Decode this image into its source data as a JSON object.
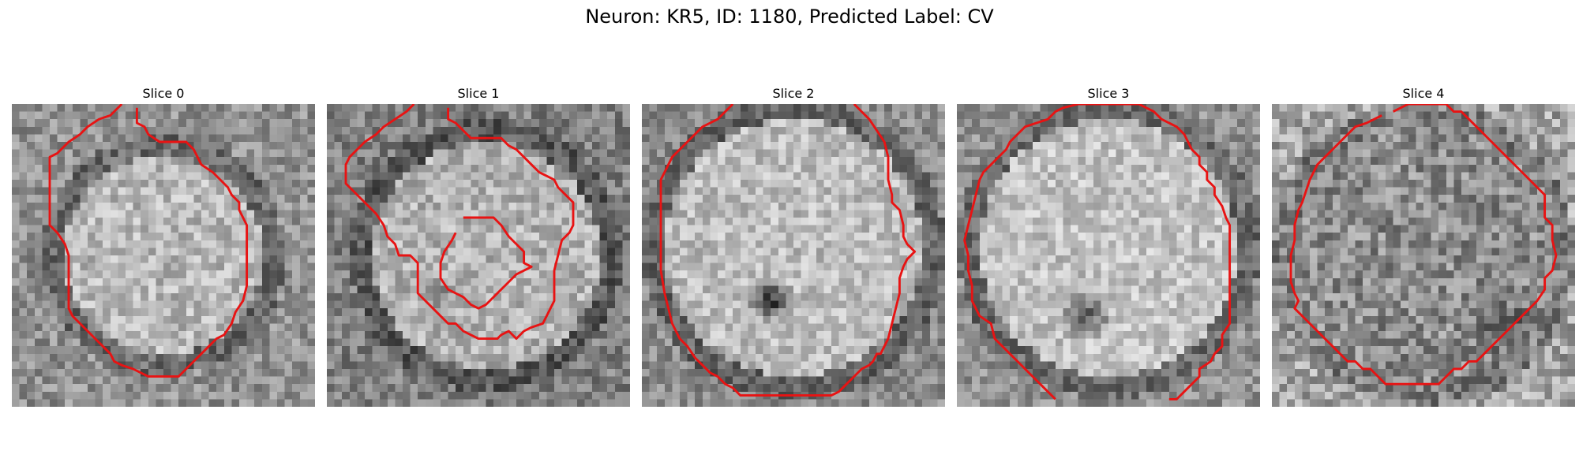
{
  "figure": {
    "title": "Neuron: KR5, ID: 1180, Predicted Label: CV",
    "grid_size": 40,
    "colormap": "gray",
    "contour_color": "#e81313"
  },
  "panels": [
    {
      "title": "Slice 0",
      "texture": {
        "seed": 11,
        "base": 0.72,
        "center": [
          20,
          20
        ],
        "radius": 13,
        "outside": 0.42,
        "noise": 0.32,
        "dark_spots": []
      },
      "contour": [
        [
          14.5,
          0
        ],
        [
          13,
          1.5
        ],
        [
          11.5,
          2
        ],
        [
          10,
          3
        ],
        [
          9,
          4
        ],
        [
          7.5,
          5
        ],
        [
          6,
          6.5
        ],
        [
          5,
          7
        ],
        [
          5,
          10
        ],
        [
          5,
          13
        ],
        [
          5,
          16
        ],
        [
          6,
          17
        ],
        [
          7,
          18.5
        ],
        [
          7.5,
          20
        ],
        [
          7.5,
          24
        ],
        [
          7.5,
          27
        ],
        [
          8,
          28
        ],
        [
          9,
          29
        ],
        [
          10,
          30
        ],
        [
          11,
          31
        ],
        [
          12,
          32
        ],
        [
          13,
          33
        ],
        [
          13.5,
          34
        ],
        [
          14.5,
          34.5
        ],
        [
          16,
          35
        ],
        [
          18,
          36
        ],
        [
          20,
          36
        ],
        [
          22,
          36
        ],
        [
          23,
          35
        ],
        [
          24,
          34
        ],
        [
          25,
          33
        ],
        [
          26,
          32
        ],
        [
          27,
          31
        ],
        [
          28,
          30.5
        ],
        [
          29,
          29
        ],
        [
          29.5,
          27.5
        ],
        [
          30.5,
          26
        ],
        [
          31,
          24
        ],
        [
          31,
          22
        ],
        [
          31,
          18
        ],
        [
          31,
          16
        ],
        [
          30,
          14
        ],
        [
          30,
          13
        ],
        [
          29,
          12
        ],
        [
          28.5,
          11
        ],
        [
          27.5,
          10
        ],
        [
          26.5,
          9
        ],
        [
          25,
          8
        ],
        [
          24,
          6
        ],
        [
          23,
          5
        ],
        [
          21,
          5
        ],
        [
          19.5,
          5
        ],
        [
          18,
          4
        ],
        [
          17.5,
          3
        ],
        [
          16.5,
          2.5
        ],
        [
          16.5,
          0.5
        ]
      ]
    },
    {
      "title": "Slice 1",
      "texture": {
        "seed": 23,
        "base": 0.7,
        "center": [
          21,
          20
        ],
        "radius": 15,
        "outside": 0.35,
        "noise": 0.32,
        "dark_spots": [
          [
            14,
            25,
            3,
            0.25
          ]
        ]
      },
      "contour": [
        [
          11.5,
          0
        ],
        [
          10.5,
          1
        ],
        [
          9,
          2
        ],
        [
          7.5,
          3
        ],
        [
          6.5,
          4
        ],
        [
          5,
          5
        ],
        [
          4,
          6
        ],
        [
          3,
          7
        ],
        [
          2.5,
          8
        ],
        [
          2.5,
          10.5
        ],
        [
          3.5,
          11.5
        ],
        [
          4.5,
          12.5
        ],
        [
          5.5,
          13.5
        ],
        [
          6.5,
          14.5
        ],
        [
          7.5,
          16
        ],
        [
          8,
          17.5
        ],
        [
          9,
          18.5
        ],
        [
          9.5,
          20
        ],
        [
          11,
          20
        ],
        [
          12,
          21
        ],
        [
          12,
          23
        ],
        [
          12,
          25
        ],
        [
          13,
          26
        ],
        [
          14,
          27
        ],
        [
          15,
          28
        ],
        [
          16,
          29
        ],
        [
          17,
          29
        ],
        [
          18,
          30
        ],
        [
          19,
          30.5
        ],
        [
          20,
          31
        ],
        [
          22.5,
          31
        ],
        [
          23,
          30.5
        ],
        [
          24,
          30
        ],
        [
          25,
          31
        ],
        [
          26,
          30
        ],
        [
          27,
          29.5
        ],
        [
          28.5,
          29
        ],
        [
          29,
          28
        ],
        [
          30,
          26
        ],
        [
          30,
          24
        ],
        [
          30,
          22
        ],
        [
          30.5,
          20
        ],
        [
          31,
          18
        ],
        [
          32,
          17
        ],
        [
          32.5,
          16
        ],
        [
          32.5,
          13
        ],
        [
          31.5,
          12
        ],
        [
          30.5,
          11
        ],
        [
          30,
          10
        ],
        [
          29,
          9.5
        ],
        [
          28,
          9
        ],
        [
          27,
          8
        ],
        [
          26,
          7
        ],
        [
          25,
          6
        ],
        [
          24,
          5.5
        ],
        [
          23,
          4.5
        ],
        [
          21,
          4.5
        ],
        [
          19,
          4.5
        ],
        [
          18,
          3.5
        ],
        [
          17,
          2.5
        ],
        [
          16,
          2
        ],
        [
          16,
          0.5
        ]
      ],
      "inner_contour": [
        [
          18,
          15
        ],
        [
          20,
          15
        ],
        [
          22,
          15
        ],
        [
          23,
          16
        ],
        [
          24,
          17.5
        ],
        [
          25,
          18.5
        ],
        [
          26,
          19.5
        ],
        [
          26,
          21
        ],
        [
          27,
          21.5
        ],
        [
          26,
          22
        ],
        [
          25,
          22.5
        ],
        [
          24,
          23.5
        ],
        [
          23,
          24.5
        ],
        [
          22,
          25.5
        ],
        [
          21,
          26.5
        ],
        [
          20,
          27
        ],
        [
          19,
          26.5
        ],
        [
          18,
          25.5
        ],
        [
          17,
          25
        ],
        [
          16,
          24.5
        ],
        [
          15,
          23
        ],
        [
          15,
          21
        ],
        [
          15.5,
          19.5
        ],
        [
          16.5,
          18
        ],
        [
          17,
          17
        ]
      ]
    },
    {
      "title": "Slice 2",
      "texture": {
        "seed": 37,
        "base": 0.74,
        "center": [
          20,
          19
        ],
        "radius": 17,
        "outside": 0.4,
        "noise": 0.3,
        "dark_spots": [
          [
            17,
            26,
            3.2,
            0.6
          ]
        ]
      },
      "contour": [
        [
          28,
          0
        ],
        [
          29,
          1
        ],
        [
          30,
          2
        ],
        [
          31,
          3.5
        ],
        [
          32,
          5
        ],
        [
          32.5,
          7
        ],
        [
          32.5,
          10
        ],
        [
          33,
          12
        ],
        [
          33,
          13
        ],
        [
          34,
          14
        ],
        [
          34.5,
          16
        ],
        [
          34.5,
          17.5
        ],
        [
          35,
          18.5
        ],
        [
          36,
          19.5
        ],
        [
          35,
          20.5
        ],
        [
          34.5,
          21.5
        ],
        [
          34,
          23
        ],
        [
          34,
          25
        ],
        [
          33.5,
          27
        ],
        [
          33,
          29
        ],
        [
          32.5,
          31
        ],
        [
          32,
          32
        ],
        [
          31.5,
          33
        ],
        [
          31,
          33
        ],
        [
          30.5,
          34
        ],
        [
          30,
          34.5
        ],
        [
          29,
          35
        ],
        [
          28,
          36
        ],
        [
          27,
          37
        ],
        [
          26,
          38
        ],
        [
          25,
          38.5
        ],
        [
          21,
          38.5
        ],
        [
          18,
          38.5
        ],
        [
          15,
          38.5
        ],
        [
          13,
          38.5
        ],
        [
          12,
          37.5
        ],
        [
          11,
          37
        ],
        [
          10,
          36
        ],
        [
          9,
          35.5
        ],
        [
          8,
          34.5
        ],
        [
          7,
          33.5
        ],
        [
          6,
          32
        ],
        [
          5,
          31
        ],
        [
          4,
          29
        ],
        [
          3.5,
          27
        ],
        [
          3,
          25
        ],
        [
          2.5,
          22
        ],
        [
          2.5,
          18
        ],
        [
          2.5,
          14
        ],
        [
          2.5,
          10
        ],
        [
          3.5,
          8
        ],
        [
          4,
          7
        ],
        [
          5,
          6
        ],
        [
          6,
          5
        ],
        [
          7,
          4
        ],
        [
          8,
          3
        ],
        [
          9,
          2.5
        ],
        [
          10,
          2
        ],
        [
          11,
          1
        ],
        [
          12,
          0
        ]
      ]
    },
    {
      "title": "Slice 3",
      "texture": {
        "seed": 53,
        "base": 0.76,
        "center": [
          20,
          19
        ],
        "radius": 17,
        "outside": 0.42,
        "noise": 0.3,
        "dark_spots": [
          [
            17,
            28,
            3.5,
            0.5
          ]
        ]
      },
      "contour": [
        [
          13,
          39
        ],
        [
          12,
          38
        ],
        [
          11,
          37
        ],
        [
          10,
          36
        ],
        [
          9,
          35
        ],
        [
          8,
          34
        ],
        [
          7,
          33
        ],
        [
          6,
          32
        ],
        [
          5,
          31
        ],
        [
          4.5,
          29
        ],
        [
          3,
          28
        ],
        [
          2,
          26
        ],
        [
          2,
          24
        ],
        [
          1.5,
          22
        ],
        [
          1.5,
          20
        ],
        [
          1,
          18
        ],
        [
          1.5,
          16
        ],
        [
          2,
          14
        ],
        [
          2.5,
          12
        ],
        [
          3,
          10
        ],
        [
          3.5,
          9
        ],
        [
          4.5,
          8
        ],
        [
          5.5,
          7
        ],
        [
          6.5,
          6
        ],
        [
          7,
          5
        ],
        [
          8,
          4
        ],
        [
          9,
          3
        ],
        [
          10.5,
          2.5
        ],
        [
          12,
          2
        ],
        [
          13,
          1
        ],
        [
          14,
          0.5
        ],
        [
          16,
          0
        ],
        [
          20,
          0
        ],
        [
          24,
          0
        ],
        [
          26,
          1
        ],
        [
          27,
          2
        ],
        [
          29,
          3
        ],
        [
          30,
          4
        ],
        [
          31,
          6
        ],
        [
          32,
          7
        ],
        [
          32,
          8
        ],
        [
          33,
          9
        ],
        [
          33,
          10
        ],
        [
          34,
          11
        ],
        [
          34,
          12
        ],
        [
          35,
          13.5
        ],
        [
          35.5,
          15
        ],
        [
          36,
          16
        ],
        [
          36,
          20
        ],
        [
          36,
          25
        ],
        [
          36,
          29
        ],
        [
          35,
          30.5
        ],
        [
          35,
          32
        ],
        [
          34,
          33
        ],
        [
          33.5,
          34
        ],
        [
          32,
          35
        ],
        [
          32,
          36
        ],
        [
          31,
          37
        ],
        [
          30,
          38
        ],
        [
          29,
          39
        ],
        [
          28,
          39
        ]
      ]
    },
    {
      "title": "Slice 4",
      "texture": {
        "seed": 71,
        "base": 0.55,
        "center": [
          20,
          20
        ],
        "radius": 17,
        "outside": 0.5,
        "noise": 0.4,
        "dark_spots": [
          [
            30,
            29,
            5,
            0.2
          ]
        ]
      },
      "contour": [
        [
          16,
          1
        ],
        [
          18,
          0
        ],
        [
          20,
          0
        ],
        [
          23,
          0
        ],
        [
          24,
          1
        ],
        [
          25,
          1
        ],
        [
          26,
          2
        ],
        [
          27,
          3
        ],
        [
          28,
          4
        ],
        [
          29,
          5
        ],
        [
          30,
          6
        ],
        [
          31,
          7
        ],
        [
          32,
          8
        ],
        [
          33,
          9
        ],
        [
          34,
          10
        ],
        [
          35,
          11
        ],
        [
          36,
          12
        ],
        [
          36,
          15
        ],
        [
          37,
          16
        ],
        [
          37,
          18
        ],
        [
          37.5,
          20
        ],
        [
          37,
          22
        ],
        [
          36,
          23
        ],
        [
          36,
          24.5
        ],
        [
          35,
          26
        ],
        [
          34,
          27
        ],
        [
          33,
          28
        ],
        [
          32,
          29
        ],
        [
          31,
          30
        ],
        [
          30,
          31
        ],
        [
          29,
          32
        ],
        [
          28,
          33
        ],
        [
          27,
          34
        ],
        [
          26,
          34
        ],
        [
          25,
          35
        ],
        [
          24,
          35
        ],
        [
          23,
          36
        ],
        [
          22,
          37
        ],
        [
          20,
          37
        ],
        [
          17,
          37
        ],
        [
          15,
          37
        ],
        [
          14,
          36
        ],
        [
          13,
          35
        ],
        [
          12,
          35
        ],
        [
          11,
          34
        ],
        [
          10,
          34
        ],
        [
          9,
          33
        ],
        [
          8,
          32
        ],
        [
          7,
          31
        ],
        [
          6,
          30
        ],
        [
          5,
          29
        ],
        [
          4,
          28
        ],
        [
          3,
          27
        ],
        [
          3.5,
          26
        ],
        [
          3,
          25
        ],
        [
          2.5,
          23.5
        ],
        [
          2.5,
          22
        ],
        [
          2.5,
          20
        ],
        [
          3,
          18
        ],
        [
          3,
          16
        ],
        [
          3.5,
          14
        ],
        [
          4,
          13
        ],
        [
          4.5,
          11.5
        ],
        [
          5,
          10
        ],
        [
          5.5,
          9
        ],
        [
          6,
          8
        ],
        [
          7,
          7
        ],
        [
          8,
          6
        ],
        [
          9,
          5
        ],
        [
          10,
          4
        ],
        [
          11,
          3
        ],
        [
          12.5,
          2.5
        ],
        [
          13.5,
          2
        ],
        [
          14.5,
          1.5
        ]
      ]
    }
  ]
}
